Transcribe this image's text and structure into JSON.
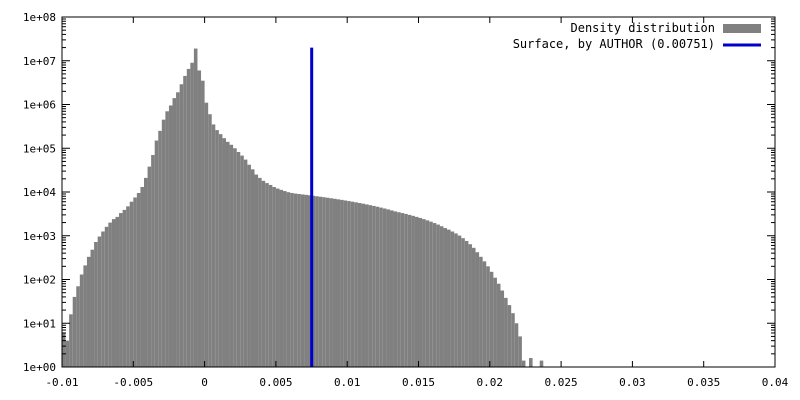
{
  "chart_data": {
    "type": "bar",
    "y_scale": "log",
    "grid": false,
    "legend_position": "top-right",
    "xlim": [
      -0.01,
      0.04
    ],
    "ylim": [
      1,
      100000000
    ],
    "x_ticks": [
      -0.01,
      -0.005,
      0,
      0.005,
      0.01,
      0.015,
      0.02,
      0.025,
      0.03,
      0.035,
      0.04
    ],
    "x_tick_labels": [
      "-0.01",
      "-0.005",
      "0",
      "0.005",
      "0.01",
      "0.015",
      "0.02",
      "0.025",
      "0.03",
      "0.035",
      "0.04"
    ],
    "y_ticks": [
      1,
      10,
      100,
      1000,
      10000,
      100000,
      1000000,
      10000000,
      100000000
    ],
    "y_tick_labels": [
      "1e+00",
      "1e+01",
      "1e+02",
      "1e+03",
      "1e+04",
      "1e+05",
      "1e+06",
      "1e+07",
      "1e+08"
    ],
    "bin_width": 0.00025,
    "series": [
      {
        "name": "Density distribution",
        "color": "#808080",
        "bins": [
          [
            -0.01,
            6
          ],
          [
            -0.00975,
            4
          ],
          [
            -0.0095,
            16
          ],
          [
            -0.00925,
            40
          ],
          [
            -0.009,
            70
          ],
          [
            -0.00875,
            130
          ],
          [
            -0.0085,
            210
          ],
          [
            -0.00825,
            330
          ],
          [
            -0.008,
            480
          ],
          [
            -0.00775,
            720
          ],
          [
            -0.0075,
            960
          ],
          [
            -0.00725,
            1250
          ],
          [
            -0.007,
            1600
          ],
          [
            -0.00675,
            2000
          ],
          [
            -0.0065,
            2400
          ],
          [
            -0.00625,
            2700
          ],
          [
            -0.006,
            3300
          ],
          [
            -0.00575,
            3900
          ],
          [
            -0.0055,
            4700
          ],
          [
            -0.00525,
            6000
          ],
          [
            -0.005,
            7500
          ],
          [
            -0.00475,
            9500
          ],
          [
            -0.0045,
            13000
          ],
          [
            -0.00425,
            21000
          ],
          [
            -0.004,
            38000
          ],
          [
            -0.00375,
            70000
          ],
          [
            -0.0035,
            150000
          ],
          [
            -0.00325,
            250000
          ],
          [
            -0.003,
            450000
          ],
          [
            -0.00275,
            700000
          ],
          [
            -0.0025,
            950000
          ],
          [
            -0.00225,
            1400000
          ],
          [
            -0.002,
            1900000
          ],
          [
            -0.00175,
            2900000
          ],
          [
            -0.0015,
            4500000
          ],
          [
            -0.00125,
            6500000
          ],
          [
            -0.001,
            9000000
          ],
          [
            -0.00075,
            19000000
          ],
          [
            -0.0005,
            6000000
          ],
          [
            -0.00025,
            3500000
          ],
          [
            0,
            1100000
          ],
          [
            0.00025,
            600000
          ],
          [
            0.0005,
            350000
          ],
          [
            0.00075,
            260000
          ],
          [
            0.001,
            210000
          ],
          [
            0.00125,
            170000
          ],
          [
            0.0015,
            140000
          ],
          [
            0.00175,
            120000
          ],
          [
            0.002,
            100000
          ],
          [
            0.00225,
            82000
          ],
          [
            0.0025,
            68000
          ],
          [
            0.00275,
            55000
          ],
          [
            0.003,
            42000
          ],
          [
            0.00325,
            33000
          ],
          [
            0.0035,
            25000
          ],
          [
            0.00375,
            21000
          ],
          [
            0.004,
            18000
          ],
          [
            0.00425,
            16000
          ],
          [
            0.0045,
            14500
          ],
          [
            0.00475,
            13000
          ],
          [
            0.005,
            12000
          ],
          [
            0.00525,
            11200
          ],
          [
            0.0055,
            10500
          ],
          [
            0.00575,
            9900
          ],
          [
            0.006,
            9500
          ],
          [
            0.00625,
            9200
          ],
          [
            0.0065,
            9000
          ],
          [
            0.00675,
            8800
          ],
          [
            0.007,
            8600
          ],
          [
            0.00725,
            8400
          ],
          [
            0.0075,
            8200
          ],
          [
            0.00775,
            8000
          ],
          [
            0.008,
            7800
          ],
          [
            0.00825,
            7600
          ],
          [
            0.0085,
            7400
          ],
          [
            0.00875,
            7200
          ],
          [
            0.009,
            7000
          ],
          [
            0.00925,
            6800
          ],
          [
            0.0095,
            6600
          ],
          [
            0.00975,
            6400
          ],
          [
            0.01,
            6200
          ],
          [
            0.01025,
            6000
          ],
          [
            0.0105,
            5800
          ],
          [
            0.01075,
            5600
          ],
          [
            0.011,
            5400
          ],
          [
            0.01125,
            5200
          ],
          [
            0.0115,
            5000
          ],
          [
            0.01175,
            4800
          ],
          [
            0.012,
            4600
          ],
          [
            0.01225,
            4400
          ],
          [
            0.0125,
            4200
          ],
          [
            0.01275,
            4000
          ],
          [
            0.013,
            3800
          ],
          [
            0.01325,
            3600
          ],
          [
            0.0135,
            3450
          ],
          [
            0.01375,
            3300
          ],
          [
            0.014,
            3150
          ],
          [
            0.01425,
            3000
          ],
          [
            0.0145,
            2850
          ],
          [
            0.01475,
            2700
          ],
          [
            0.015,
            2550
          ],
          [
            0.01525,
            2400
          ],
          [
            0.0155,
            2250
          ],
          [
            0.01575,
            2100
          ],
          [
            0.016,
            1950
          ],
          [
            0.01625,
            1800
          ],
          [
            0.0165,
            1650
          ],
          [
            0.01675,
            1500
          ],
          [
            0.017,
            1380
          ],
          [
            0.01725,
            1250
          ],
          [
            0.0175,
            1130
          ],
          [
            0.01775,
            1010
          ],
          [
            0.018,
            880
          ],
          [
            0.01825,
            760
          ],
          [
            0.0185,
            640
          ],
          [
            0.01875,
            530
          ],
          [
            0.019,
            420
          ],
          [
            0.01925,
            330
          ],
          [
            0.0195,
            260
          ],
          [
            0.01975,
            200
          ],
          [
            0.02,
            150
          ],
          [
            0.02025,
            110
          ],
          [
            0.0205,
            80
          ],
          [
            0.02075,
            56
          ],
          [
            0.021,
            38
          ],
          [
            0.02125,
            26
          ],
          [
            0.0215,
            17
          ],
          [
            0.02175,
            10
          ],
          [
            0.022,
            5
          ],
          [
            0.02225,
            1.4
          ],
          [
            0.02275,
            1.6
          ],
          [
            0.0235,
            1.4
          ]
        ]
      },
      {
        "name": "Surface, by AUTHOR (0.00751)",
        "color": "#0000cc",
        "x": 0.00751,
        "y_range": [
          1,
          20000000
        ]
      }
    ]
  }
}
